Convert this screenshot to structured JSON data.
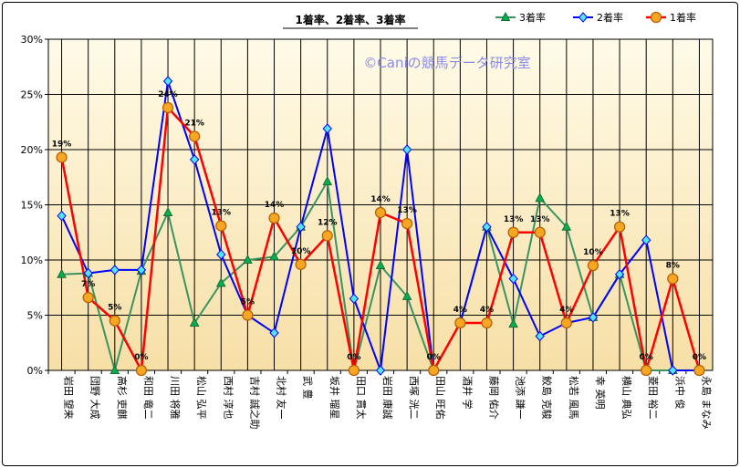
{
  "chart_data": {
    "type": "line",
    "title": "1着率、2着率、3着率",
    "watermark": "©Caniの競馬データ研究室",
    "ylim": [
      0,
      30
    ],
    "yticks": [
      "0%",
      "5%",
      "10%",
      "15%",
      "20%",
      "25%",
      "30%"
    ],
    "grid": true,
    "legend": "top-right",
    "categories": [
      "岩田 望来",
      "団野 大成",
      "高杉 吏麒",
      "和田 竜二",
      "川田 将雅",
      "松山 弘平",
      "西村 淳也",
      "吉村 誠之助",
      "北村 友一",
      "武 豊",
      "坂井 瑠星",
      "田口 貫太",
      "岩田 康誠",
      "西塚 洸二",
      "田山 旺佑",
      "酒井 学",
      "藤岡 佑介",
      "池添 謙一",
      "鮫島 克駿",
      "松若 風馬",
      "幸 英明",
      "横山 典弘",
      "菱田 裕二",
      "浜中 俊",
      "永島 まなみ"
    ],
    "series": [
      {
        "name": "3着率",
        "color": "#3a9460",
        "marker": "triangle",
        "values": [
          8.7,
          8.8,
          0,
          9,
          14.3,
          4.3,
          7.9,
          10,
          10.3,
          13,
          17.1,
          0,
          9.5,
          6.7,
          0,
          4.3,
          13,
          4.2,
          15.6,
          13,
          4.8,
          8.7,
          0,
          0,
          0
        ]
      },
      {
        "name": "2着率",
        "color": "#0000ff",
        "marker": "diamond",
        "values": [
          14,
          8.8,
          9.1,
          9.1,
          26.2,
          19.1,
          10.5,
          5,
          3.4,
          13,
          21.9,
          6.5,
          0,
          20,
          0,
          4.3,
          13,
          8.3,
          3.1,
          4.3,
          4.8,
          8.7,
          11.8,
          0,
          0
        ]
      },
      {
        "name": "1着率",
        "color": "#ff0000",
        "marker": "circle",
        "values": [
          19.3,
          6.6,
          4.5,
          0,
          23.8,
          21.2,
          13.1,
          5,
          13.8,
          9.6,
          12.2,
          0,
          14.3,
          13.3,
          0,
          4.3,
          4.3,
          12.5,
          12.5,
          4.3,
          9.5,
          13,
          0,
          8.3,
          0
        ],
        "labels": [
          "19%",
          "7%",
          "5%",
          "0%",
          "24%",
          "21%",
          "13%",
          "5%",
          "14%",
          "10%",
          "12%",
          "0%",
          "14%",
          "13%",
          "0%",
          "4%",
          "4%",
          "13%",
          "13%",
          "4%",
          "10%",
          "13%",
          "0%",
          "8%",
          "0%"
        ]
      }
    ]
  }
}
